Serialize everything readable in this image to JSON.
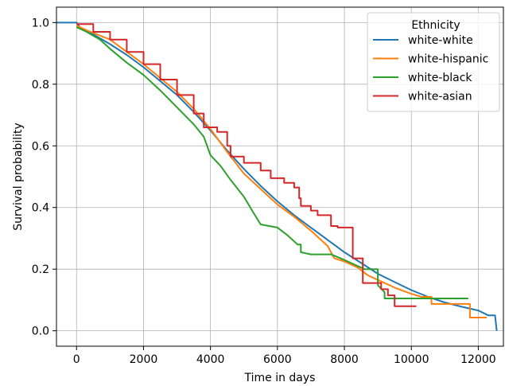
{
  "chart_data": {
    "type": "line",
    "title": "",
    "xlabel": "Time in days",
    "ylabel": "Survival probability",
    "xlim": [
      -600,
      12750
    ],
    "ylim": [
      -0.05,
      1.05
    ],
    "xticks": [
      0,
      2000,
      4000,
      6000,
      8000,
      10000,
      12000
    ],
    "xtick_labels": [
      "0",
      "2000",
      "4000",
      "6000",
      "8000",
      "10000",
      "12000"
    ],
    "yticks": [
      0.0,
      0.2,
      0.4,
      0.6,
      0.8,
      1.0
    ],
    "ytick_labels": [
      "0.0",
      "0.2",
      "0.4",
      "0.6",
      "0.8",
      "1.0"
    ],
    "grid": true,
    "legend": {
      "title": "Ethnicity",
      "position": "top-right"
    },
    "series": [
      {
        "name": "white-white",
        "color": "#1f77b4",
        "step": false,
        "points": [
          [
            -600,
            1.0
          ],
          [
            0,
            1.0
          ],
          [
            100,
            0.985
          ],
          [
            500,
            0.962
          ],
          [
            1000,
            0.93
          ],
          [
            1500,
            0.895
          ],
          [
            2000,
            0.855
          ],
          [
            2500,
            0.81
          ],
          [
            3000,
            0.765
          ],
          [
            3500,
            0.71
          ],
          [
            4000,
            0.65
          ],
          [
            4500,
            0.585
          ],
          [
            5000,
            0.525
          ],
          [
            5500,
            0.47
          ],
          [
            6000,
            0.42
          ],
          [
            6500,
            0.375
          ],
          [
            7000,
            0.335
          ],
          [
            7500,
            0.295
          ],
          [
            8000,
            0.255
          ],
          [
            8500,
            0.22
          ],
          [
            9000,
            0.185
          ],
          [
            9500,
            0.158
          ],
          [
            10000,
            0.132
          ],
          [
            10500,
            0.11
          ],
          [
            11000,
            0.092
          ],
          [
            11500,
            0.078
          ],
          [
            12000,
            0.066
          ],
          [
            12300,
            0.05
          ],
          [
            12500,
            0.05
          ],
          [
            12550,
            0.0
          ]
        ]
      },
      {
        "name": "white-hispanic",
        "color": "#ff7f0e",
        "step": false,
        "points": [
          [
            0,
            0.99
          ],
          [
            300,
            0.975
          ],
          [
            1000,
            0.945
          ],
          [
            1500,
            0.905
          ],
          [
            2000,
            0.865
          ],
          [
            2500,
            0.82
          ],
          [
            3000,
            0.775
          ],
          [
            3500,
            0.72
          ],
          [
            4000,
            0.655
          ],
          [
            4500,
            0.58
          ],
          [
            5000,
            0.51
          ],
          [
            5500,
            0.46
          ],
          [
            6000,
            0.41
          ],
          [
            6500,
            0.37
          ],
          [
            7000,
            0.325
          ],
          [
            7500,
            0.275
          ],
          [
            7700,
            0.235
          ],
          [
            8000,
            0.225
          ],
          [
            8400,
            0.205
          ],
          [
            8700,
            0.18
          ],
          [
            9000,
            0.165
          ],
          [
            9500,
            0.14
          ],
          [
            10000,
            0.12
          ],
          [
            10300,
            0.11
          ],
          [
            10600,
            0.11
          ],
          [
            10600,
            0.087
          ],
          [
            11500,
            0.087
          ],
          [
            11750,
            0.087
          ],
          [
            11750,
            0.043
          ],
          [
            12250,
            0.043
          ]
        ]
      },
      {
        "name": "white-black",
        "color": "#2ca02c",
        "step": false,
        "points": [
          [
            0,
            0.985
          ],
          [
            300,
            0.97
          ],
          [
            700,
            0.945
          ],
          [
            1000,
            0.915
          ],
          [
            1500,
            0.87
          ],
          [
            2000,
            0.83
          ],
          [
            2500,
            0.78
          ],
          [
            3000,
            0.725
          ],
          [
            3500,
            0.67
          ],
          [
            3800,
            0.63
          ],
          [
            4000,
            0.57
          ],
          [
            4300,
            0.535
          ],
          [
            4600,
            0.49
          ],
          [
            5000,
            0.435
          ],
          [
            5300,
            0.38
          ],
          [
            5500,
            0.345
          ],
          [
            6000,
            0.335
          ],
          [
            6300,
            0.31
          ],
          [
            6600,
            0.28
          ],
          [
            6700,
            0.28
          ],
          [
            6700,
            0.255
          ],
          [
            7000,
            0.248
          ],
          [
            7600,
            0.248
          ],
          [
            8000,
            0.23
          ],
          [
            8300,
            0.215
          ],
          [
            8600,
            0.2
          ],
          [
            9000,
            0.2
          ],
          [
            9000,
            0.148
          ],
          [
            9200,
            0.125
          ],
          [
            9200,
            0.105
          ],
          [
            11000,
            0.105
          ],
          [
            11700,
            0.105
          ]
        ]
      },
      {
        "name": "white-asian",
        "color": "#d62728",
        "step": true,
        "points": [
          [
            0,
            0.995
          ],
          [
            500,
            0.97
          ],
          [
            1000,
            0.945
          ],
          [
            1500,
            0.905
          ],
          [
            2000,
            0.865
          ],
          [
            2500,
            0.815
          ],
          [
            3000,
            0.765
          ],
          [
            3500,
            0.705
          ],
          [
            3800,
            0.66
          ],
          [
            4200,
            0.645
          ],
          [
            4500,
            0.6
          ],
          [
            4600,
            0.565
          ],
          [
            5000,
            0.545
          ],
          [
            5500,
            0.52
          ],
          [
            5800,
            0.495
          ],
          [
            6200,
            0.48
          ],
          [
            6500,
            0.465
          ],
          [
            6650,
            0.43
          ],
          [
            6700,
            0.405
          ],
          [
            7000,
            0.39
          ],
          [
            7200,
            0.375
          ],
          [
            7600,
            0.34
          ],
          [
            7800,
            0.335
          ],
          [
            8250,
            0.335
          ],
          [
            8250,
            0.235
          ],
          [
            8550,
            0.235
          ],
          [
            8550,
            0.155
          ],
          [
            9000,
            0.155
          ],
          [
            9100,
            0.135
          ],
          [
            9300,
            0.115
          ],
          [
            9500,
            0.08
          ],
          [
            10150,
            0.08
          ]
        ]
      }
    ]
  }
}
